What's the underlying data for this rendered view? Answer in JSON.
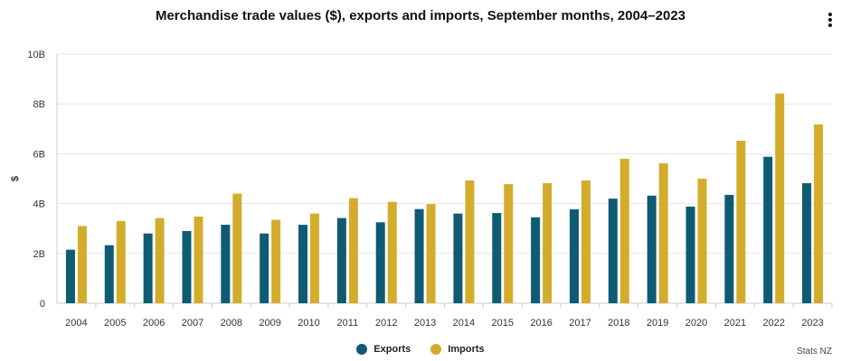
{
  "chart_data": {
    "type": "bar",
    "title": "Merchandise trade values ($), exports and imports, September months, 2004–2023",
    "xlabel": "",
    "ylabel": "$",
    "ylim": [
      0,
      10
    ],
    "yticks": [
      "0",
      "2B",
      "4B",
      "6B",
      "8B",
      "10B"
    ],
    "categories": [
      "2004",
      "2005",
      "2006",
      "2007",
      "2008",
      "2009",
      "2010",
      "2011",
      "2012",
      "2013",
      "2014",
      "2015",
      "2016",
      "2017",
      "2018",
      "2019",
      "2020",
      "2021",
      "2022",
      "2023"
    ],
    "series": [
      {
        "name": "Exports",
        "color": "#0e5b73",
        "values": [
          2.15,
          2.33,
          2.8,
          2.9,
          3.15,
          2.8,
          3.15,
          3.42,
          3.25,
          3.78,
          3.6,
          3.62,
          3.45,
          3.77,
          4.2,
          4.32,
          3.88,
          4.35,
          5.88,
          4.82
        ]
      },
      {
        "name": "Imports",
        "color": "#d4ac2c",
        "values": [
          3.1,
          3.3,
          3.42,
          3.48,
          4.4,
          3.35,
          3.6,
          4.22,
          4.07,
          3.98,
          4.93,
          4.78,
          4.82,
          4.93,
          5.8,
          5.62,
          5.0,
          6.52,
          8.42,
          7.18
        ]
      }
    ],
    "legend_position": "bottom-center",
    "grid": true
  },
  "credit": "Stats NZ",
  "menu_icon": "kebab-menu-icon"
}
